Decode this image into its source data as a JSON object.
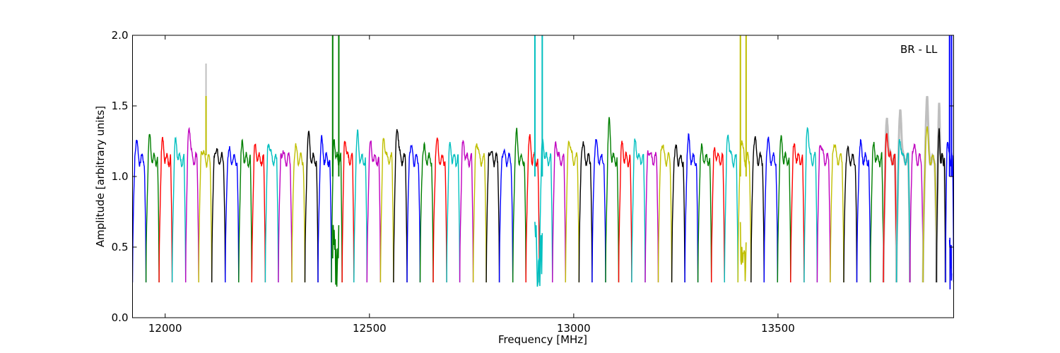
{
  "chart_data": {
    "type": "line",
    "title": "",
    "xlabel": "Frequency [MHz]",
    "ylabel": "Amplitude [arbitrary units]",
    "xlim": [
      11920,
      13930
    ],
    "ylim": [
      0.0,
      2.0
    ],
    "xticks": [
      12000,
      12500,
      13000,
      13500
    ],
    "xtick_labels": [
      "12000",
      "12500",
      "13000",
      "13500"
    ],
    "yticks": [
      0.0,
      0.5,
      1.0,
      1.5,
      2.0
    ],
    "ytick_labels": [
      "0.0",
      "0.5",
      "1.0",
      "1.5",
      "2.0"
    ],
    "grid": false,
    "annotation": "BR - LL",
    "annotation_position": "top-right",
    "colors": {
      "blue": "#0000ff",
      "green": "#007f00",
      "red": "#ff0000",
      "cyan": "#00bfbf",
      "magenta": "#bf00bf",
      "olive": "#bfbf00",
      "black": "#000000",
      "raw_gray": "#bfbfbf"
    },
    "color_cycle": [
      "blue",
      "green",
      "red",
      "cyan",
      "magenta",
      "olive",
      "black"
    ],
    "description": "",
    "channel_segments": [
      {
        "start": 11920,
        "end": 11953,
        "color": "blue",
        "peak": 1.25
      },
      {
        "start": 11953,
        "end": 11985,
        "color": "green",
        "peak": 1.27
      },
      {
        "start": 11985,
        "end": 12017,
        "color": "red",
        "peak": 1.24
      },
      {
        "start": 12017,
        "end": 12050,
        "color": "cyan",
        "peak": 1.25
      },
      {
        "start": 12050,
        "end": 12082,
        "color": "magenta",
        "peak": 1.36
      },
      {
        "start": 12082,
        "end": 12114,
        "color": "olive",
        "peak": 1.2,
        "spike": {
          "x": 12100,
          "y": 1.57,
          "gray_y": 1.8
        }
      },
      {
        "start": 12114,
        "end": 12147,
        "color": "black",
        "peak": 1.2
      },
      {
        "start": 12147,
        "end": 12180,
        "color": "blue",
        "peak": 1.17
      },
      {
        "start": 12180,
        "end": 12212,
        "color": "green",
        "peak": 1.21
      },
      {
        "start": 12212,
        "end": 12245,
        "color": "red",
        "peak": 1.2
      },
      {
        "start": 12245,
        "end": 12277,
        "color": "cyan",
        "peak": 1.25
      },
      {
        "start": 12277,
        "end": 12310,
        "color": "magenta",
        "peak": 1.19
      },
      {
        "start": 12310,
        "end": 12342,
        "color": "olive",
        "peak": 1.2
      },
      {
        "start": 12342,
        "end": 12374,
        "color": "black",
        "peak": 1.3
      },
      {
        "start": 12374,
        "end": 12407,
        "color": "blue",
        "peak": 1.24
      },
      {
        "start": 12407,
        "end": 12433,
        "color": "green",
        "peak": 1.25,
        "rfi": {
          "x": [
            12410,
            12425
          ],
          "low": 0.36
        }
      },
      {
        "start": 12433,
        "end": 12462,
        "color": "red",
        "peak": 1.26
      },
      {
        "start": 12462,
        "end": 12494,
        "color": "cyan",
        "peak": 1.29
      },
      {
        "start": 12494,
        "end": 12527,
        "color": "magenta",
        "peak": 1.22
      },
      {
        "start": 12527,
        "end": 12559,
        "color": "olive",
        "peak": 1.27
      },
      {
        "start": 12559,
        "end": 12592,
        "color": "black",
        "peak": 1.37
      },
      {
        "start": 12592,
        "end": 12624,
        "color": "blue",
        "peak": 1.22
      },
      {
        "start": 12624,
        "end": 12656,
        "color": "green",
        "peak": 1.2
      },
      {
        "start": 12656,
        "end": 12689,
        "color": "red",
        "peak": 1.25
      },
      {
        "start": 12689,
        "end": 12721,
        "color": "cyan",
        "peak": 1.21
      },
      {
        "start": 12721,
        "end": 12754,
        "color": "magenta",
        "peak": 1.23
      },
      {
        "start": 12754,
        "end": 12786,
        "color": "olive",
        "peak": 1.26
      },
      {
        "start": 12786,
        "end": 12818,
        "color": "black",
        "peak": 1.2
      },
      {
        "start": 12818,
        "end": 12851,
        "color": "blue",
        "peak": 1.18
      },
      {
        "start": 12851,
        "end": 12883,
        "color": "green",
        "peak": 1.3
      },
      {
        "start": 12883,
        "end": 12916,
        "color": "red",
        "peak": 1.26
      },
      {
        "start": 12916,
        "end": 12948,
        "color": "cyan",
        "peak": 1.25,
        "rfi": {
          "x": [
            12905,
            12923
          ],
          "low": 0.36
        }
      },
      {
        "start": 12948,
        "end": 12980,
        "color": "magenta",
        "peak": 1.24
      },
      {
        "start": 12980,
        "end": 13013,
        "color": "olive",
        "peak": 1.27
      },
      {
        "start": 13013,
        "end": 13045,
        "color": "black",
        "peak": 1.24
      },
      {
        "start": 13045,
        "end": 13078,
        "color": "blue",
        "peak": 1.25
      },
      {
        "start": 13078,
        "end": 13110,
        "color": "green",
        "peak": 1.37
      },
      {
        "start": 13110,
        "end": 13142,
        "color": "red",
        "peak": 1.21
      },
      {
        "start": 13142,
        "end": 13175,
        "color": "cyan",
        "peak": 1.24
      },
      {
        "start": 13175,
        "end": 13207,
        "color": "magenta",
        "peak": 1.2
      },
      {
        "start": 13207,
        "end": 13240,
        "color": "olive",
        "peak": 1.25
      },
      {
        "start": 13240,
        "end": 13272,
        "color": "black",
        "peak": 1.2
      },
      {
        "start": 13272,
        "end": 13304,
        "color": "blue",
        "peak": 1.26
      },
      {
        "start": 13304,
        "end": 13337,
        "color": "green",
        "peak": 1.18
      },
      {
        "start": 13337,
        "end": 13369,
        "color": "red",
        "peak": 1.18
      },
      {
        "start": 13369,
        "end": 13402,
        "color": "cyan",
        "peak": 1.3
      },
      {
        "start": 13402,
        "end": 13434,
        "color": "olive",
        "peak": 1.27,
        "rfi": {
          "x": [
            13408,
            13422
          ],
          "low": 0.34
        }
      },
      {
        "start": 13434,
        "end": 13466,
        "color": "black",
        "peak": 1.28
      },
      {
        "start": 13466,
        "end": 13499,
        "color": "blue",
        "peak": 1.25
      },
      {
        "start": 13499,
        "end": 13531,
        "color": "green",
        "peak": 1.25
      },
      {
        "start": 13531,
        "end": 13564,
        "color": "red",
        "peak": 1.2
      },
      {
        "start": 13564,
        "end": 13596,
        "color": "cyan",
        "peak": 1.36
      },
      {
        "start": 13596,
        "end": 13628,
        "color": "magenta",
        "peak": 1.25
      },
      {
        "start": 13628,
        "end": 13661,
        "color": "olive",
        "peak": 1.25
      },
      {
        "start": 13661,
        "end": 13693,
        "color": "black",
        "peak": 1.18
      },
      {
        "start": 13693,
        "end": 13726,
        "color": "blue",
        "peak": 1.22
      },
      {
        "start": 13726,
        "end": 13758,
        "color": "green",
        "peak": 1.21
      },
      {
        "start": 13758,
        "end": 13790,
        "color": "red",
        "peak": 1.29,
        "gray_peak": 1.41
      },
      {
        "start": 13790,
        "end": 13823,
        "color": "cyan",
        "peak": 1.26,
        "gray_peak": 1.5
      },
      {
        "start": 13823,
        "end": 13855,
        "color": "magenta",
        "peak": 1.24
      },
      {
        "start": 13855,
        "end": 13888,
        "color": "olive",
        "peak": 1.36,
        "gray_peak": 1.58
      },
      {
        "start": 13888,
        "end": 13910,
        "color": "black",
        "peak": 1.3,
        "gray_peak": 1.48
      },
      {
        "start": 13910,
        "end": 13930,
        "color": "blue",
        "peak": 1.27,
        "rfi": {
          "x": [
            13920,
            13925
          ],
          "low": 0.3
        }
      }
    ],
    "trough_min": 0.25
  }
}
